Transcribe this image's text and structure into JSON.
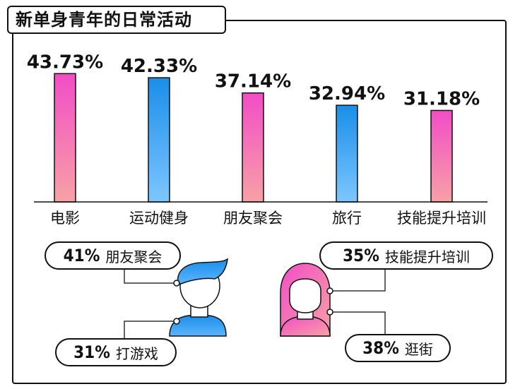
{
  "title": "新单身青年的日常活动",
  "chart_data": {
    "type": "bar",
    "categories": [
      "电影",
      "运动健身",
      "朋友聚会",
      "旅行",
      "技能提升培训"
    ],
    "values": [
      43.73,
      42.33,
      37.14,
      32.94,
      31.18
    ],
    "value_labels": [
      "43.73%",
      "42.33%",
      "37.14%",
      "32.94%",
      "31.18%"
    ],
    "bar_styles": [
      "pink",
      "blue",
      "pink",
      "blue",
      "pink"
    ],
    "ylim": [
      0,
      45
    ],
    "colors": {
      "pink_top": "#f24dc6",
      "pink_bottom": "#f7a1a6",
      "blue_top": "#1a8ee8",
      "blue_bottom": "#7dc6ff"
    }
  },
  "callouts": [
    {
      "pct": "41%",
      "label": "朋友聚会"
    },
    {
      "pct": "35%",
      "label": "技能提升培训"
    },
    {
      "pct": "31%",
      "label": "打游戏"
    },
    {
      "pct": "38%",
      "label": "逛街"
    }
  ],
  "icons": {
    "male": "male-avatar-icon",
    "female": "female-avatar-icon"
  }
}
